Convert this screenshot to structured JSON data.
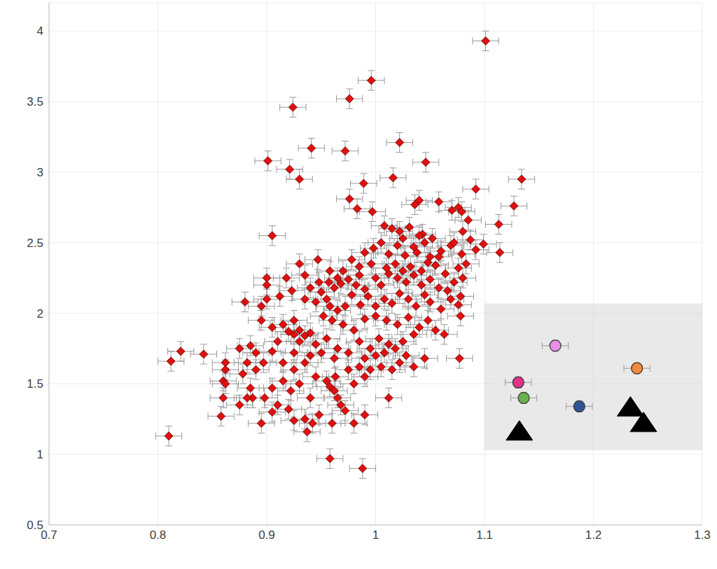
{
  "chart_data": {
    "type": "scatter",
    "xlim": [
      0.7,
      1.3
    ],
    "xticks": [
      0.7,
      0.8,
      0.9,
      1,
      1.1,
      1.2,
      1.3
    ],
    "ylim": [
      0.5,
      4.2
    ],
    "yticks": [
      0.5,
      1,
      1.5,
      2,
      2.5,
      3,
      3.5,
      4
    ],
    "grid": true,
    "highlight_region": {
      "x": [
        1.1,
        1.3
      ],
      "y": [
        1.03,
        2.07
      ]
    },
    "series": [
      {
        "marker": "diamond",
        "color": "#e01010",
        "x_error": 0.012,
        "y_error": 0.07,
        "x": [
          1.101,
          0.996,
          0.976,
          0.924,
          0.941,
          1.022,
          0.901,
          0.972,
          1.046,
          1.134,
          0.921,
          0.93,
          0.989,
          1.016,
          1.127,
          1.092,
          0.905,
          0.976,
          0.983,
          0.997,
          1.04,
          1.036,
          1.058,
          1.07,
          1.076,
          1.079,
          1.085,
          1.113,
          1.099,
          1.114,
          1.092,
          1.079,
          1.069,
          1.052,
          1.043,
          1.025,
          1.008,
          1.015,
          1.022,
          1.031,
          1.04,
          1.045,
          1.035,
          1.02,
          1.005,
          0.998,
          0.99,
          1.012,
          1.027,
          1.05,
          1.06,
          1.072,
          1.08,
          1.087,
          0.978,
          0.985,
          0.97,
          0.996,
          1.018,
          1.032,
          1.042,
          1.055,
          1.064,
          1.076,
          1.083,
          1.08,
          0.947,
          0.93,
          0.918,
          0.9,
          0.923,
          0.9,
          0.88,
          0.895,
          0.912,
          0.935,
          0.957,
          0.962,
          0.955,
          0.968,
          0.975,
          0.982,
          0.99,
          1.0,
          1.005,
          1.012,
          1.02,
          1.028,
          1.035,
          1.042,
          1.05,
          1.058,
          1.066,
          1.072,
          1.078,
          1.076,
          1.069,
          1.06,
          1.05,
          1.045,
          1.037,
          1.03,
          1.022,
          1.015,
          1.008,
          1.0,
          0.993,
          0.986,
          0.978,
          0.972,
          0.965,
          0.958,
          0.95,
          0.945,
          0.952,
          0.96,
          0.97,
          0.98,
          0.99,
          1.0,
          1.01,
          1.02,
          1.03,
          1.04,
          1.048,
          1.055,
          1.063,
          1.078,
          1.035,
          1.025,
          1.012,
          1.003,
          0.995,
          0.985,
          1.018,
          1.028,
          1.045,
          1.077,
          0.915,
          0.92,
          0.925,
          0.93,
          0.935,
          0.94,
          0.91,
          0.93,
          0.945,
          0.955,
          0.965,
          0.975,
          0.962,
          0.95,
          0.94,
          0.925,
          0.905,
          0.89,
          0.875,
          0.885,
          0.897,
          0.882,
          0.862,
          0.862,
          0.86,
          0.862,
          0.86,
          0.858,
          0.842,
          0.821,
          0.812,
          0.81,
          0.878,
          0.885,
          0.887,
          0.898,
          0.905,
          0.915,
          0.922,
          0.93,
          0.94,
          0.945,
          0.955,
          0.958,
          0.962,
          0.965,
          0.968,
          0.972,
          0.963,
          0.975,
          0.985,
          0.995,
          1.005,
          1.015,
          1.022,
          1.035,
          0.98,
          0.99,
          1.012,
          0.99,
          0.98,
          0.96,
          0.942,
          0.935,
          0.925,
          0.937,
          0.92,
          0.91,
          0.905,
          0.895,
          0.875,
          0.882,
          0.958,
          0.988,
          0.948,
          1.0,
          0.99,
          1.008,
          0.925,
          0.915,
          0.935,
          0.94,
          0.935,
          0.948,
          0.965,
          0.958,
          0.985,
          1.01,
          1.025,
          1.048,
          1.058,
          1.038,
          0.9,
          0.895,
          0.905,
          0.925,
          0.89
        ],
        "values": [
          3.93,
          3.65,
          3.52,
          3.46,
          3.17,
          3.21,
          3.08,
          3.15,
          3.07,
          2.95,
          3.02,
          2.95,
          2.92,
          2.96,
          2.76,
          2.88,
          2.55,
          2.81,
          2.74,
          2.72,
          2.8,
          2.77,
          2.79,
          2.73,
          2.75,
          2.72,
          2.66,
          2.63,
          2.49,
          2.43,
          2.45,
          2.42,
          2.48,
          2.53,
          2.56,
          2.53,
          2.62,
          2.6,
          2.58,
          2.61,
          2.55,
          2.5,
          2.47,
          2.48,
          2.5,
          2.46,
          2.43,
          2.42,
          2.41,
          2.4,
          2.44,
          2.5,
          2.58,
          2.52,
          2.38,
          2.33,
          2.3,
          2.35,
          2.35,
          2.33,
          2.3,
          2.34,
          2.28,
          2.32,
          2.35,
          2.25,
          2.38,
          2.35,
          2.25,
          2.25,
          2.16,
          2.1,
          2.08,
          2.05,
          2.12,
          2.27,
          2.22,
          2.18,
          2.1,
          2.21,
          2.24,
          2.2,
          2.17,
          2.25,
          2.2,
          2.28,
          2.25,
          2.22,
          2.27,
          2.2,
          2.24,
          2.18,
          2.16,
          2.22,
          2.12,
          2.06,
          2.1,
          2.03,
          2.08,
          2.13,
          2.05,
          2.1,
          2.14,
          2.07,
          2.1,
          2.05,
          2.12,
          2.06,
          2.13,
          2.05,
          2.02,
          2.05,
          2.15,
          2.08,
          1.98,
          1.95,
          1.92,
          1.88,
          1.96,
          1.98,
          1.95,
          1.92,
          1.97,
          1.9,
          1.95,
          1.88,
          1.85,
          1.98,
          1.85,
          1.8,
          1.78,
          1.82,
          1.75,
          1.8,
          1.75,
          1.7,
          1.68,
          1.68,
          1.92,
          1.87,
          1.85,
          1.88,
          1.84,
          1.86,
          1.8,
          1.8,
          1.78,
          1.82,
          1.75,
          1.72,
          1.68,
          1.72,
          1.7,
          1.72,
          1.73,
          1.72,
          1.75,
          1.77,
          1.65,
          1.65,
          1.65,
          1.6,
          1.52,
          1.5,
          1.4,
          1.27,
          1.71,
          1.73,
          1.66,
          1.13,
          1.57,
          1.47,
          1.4,
          1.4,
          1.47,
          1.52,
          1.45,
          1.5,
          1.4,
          1.55,
          1.52,
          1.48,
          1.45,
          1.4,
          1.35,
          1.31,
          1.55,
          1.6,
          1.62,
          1.6,
          1.62,
          1.6,
          1.65,
          1.62,
          1.5,
          1.55,
          1.4,
          1.28,
          1.22,
          1.22,
          1.22,
          1.25,
          1.24,
          1.16,
          1.32,
          1.35,
          1.3,
          1.22,
          1.35,
          1.4,
          0.97,
          0.9,
          1.28,
          1.7,
          1.68,
          1.72,
          1.6,
          1.65,
          1.65,
          2.18,
          2.1,
          2.22,
          2.25,
          2.3,
          2.27,
          2.32,
          2.3,
          2.36,
          2.4,
          2.43,
          2.2,
          1.95,
          1.9,
          1.95,
          1.6
        ]
      },
      {
        "marker": "circle",
        "colors": [
          "#e0338a",
          "#e68fe6",
          "#f08a3c",
          "#6ab04c",
          "#2f5597"
        ],
        "x_error": 0.012,
        "y_error": 0.04,
        "x": [
          1.131,
          1.165,
          1.24,
          1.136,
          1.187
        ],
        "values": [
          1.51,
          1.77,
          1.61,
          1.4,
          1.34
        ]
      },
      {
        "marker": "triangle",
        "color": "#000000",
        "x": [
          1.132,
          1.234,
          1.246
        ],
        "values": [
          1.16,
          1.33,
          1.22
        ]
      }
    ]
  }
}
